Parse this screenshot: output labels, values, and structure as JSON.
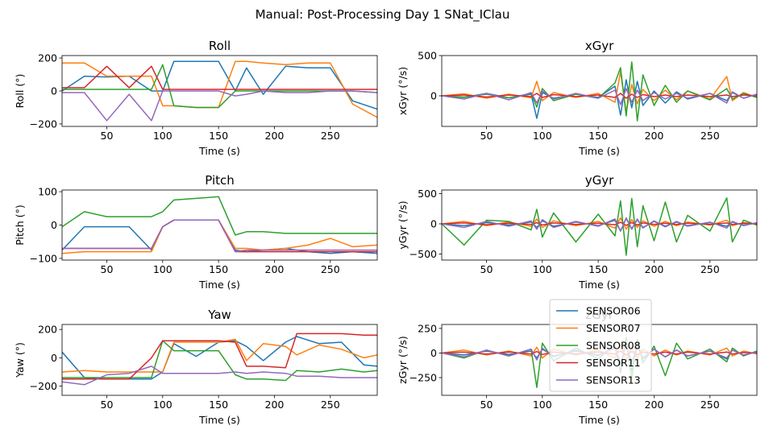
{
  "suptitle": "Manual: Post-Processing Day 1 SNat_IClau",
  "colors": {
    "SENSOR06": "#1f77b4",
    "SENSOR07": "#ff7f0e",
    "SENSOR08": "#2ca02c",
    "SENSOR11": "#d62728",
    "SENSOR13": "#9467bd"
  },
  "legend": {
    "location": "overlapping zGyr panel, top-center",
    "entries": [
      "SENSOR06",
      "SENSOR07",
      "SENSOR08",
      "SENSOR11",
      "SENSOR13"
    ]
  },
  "chart_data": [
    {
      "id": "roll",
      "type": "line",
      "title": "Roll",
      "xlabel": "Time (s)",
      "ylabel": "Roll (°)",
      "xlim": [
        10,
        292
      ],
      "ylim": [
        -215,
        215
      ],
      "xticks": [
        50,
        100,
        150,
        200,
        250
      ],
      "yticks": [
        -200,
        0,
        200
      ],
      "x": [
        10,
        30,
        50,
        70,
        90,
        100,
        110,
        130,
        150,
        165,
        175,
        190,
        210,
        230,
        250,
        270,
        292
      ],
      "series": [
        {
          "name": "SENSOR06",
          "values": [
            0,
            90,
            85,
            90,
            0,
            0,
            180,
            180,
            180,
            0,
            140,
            -20,
            150,
            140,
            140,
            -60,
            -110
          ]
        },
        {
          "name": "SENSOR07",
          "values": [
            170,
            170,
            90,
            90,
            90,
            -90,
            -90,
            -100,
            -100,
            180,
            180,
            170,
            160,
            170,
            170,
            -80,
            -160
          ]
        },
        {
          "name": "SENSOR08",
          "values": [
            10,
            10,
            10,
            10,
            10,
            160,
            -90,
            -100,
            -100,
            0,
            0,
            0,
            0,
            0,
            0,
            0,
            -10
          ]
        },
        {
          "name": "SENSOR11",
          "values": [
            20,
            20,
            150,
            20,
            150,
            10,
            10,
            10,
            10,
            10,
            10,
            10,
            10,
            10,
            10,
            10,
            10
          ]
        },
        {
          "name": "SENSOR13",
          "values": [
            -10,
            -10,
            -180,
            -20,
            -180,
            0,
            0,
            0,
            0,
            -30,
            -20,
            0,
            -10,
            -10,
            0,
            0,
            -10
          ]
        }
      ]
    },
    {
      "id": "xgyr",
      "type": "line",
      "title": "xGyr",
      "xlabel": "Time (s)",
      "ylabel": "xGyr (°/s)",
      "xlim": [
        10,
        292
      ],
      "ylim": [
        -380,
        500
      ],
      "xticks": [
        50,
        100,
        150,
        200,
        250
      ],
      "yticks": [
        0,
        500
      ],
      "x": [
        10,
        30,
        50,
        70,
        90,
        95,
        100,
        110,
        130,
        150,
        165,
        170,
        175,
        180,
        185,
        190,
        200,
        210,
        220,
        230,
        250,
        265,
        270,
        280,
        292
      ],
      "series": [
        {
          "name": "SENSOR06",
          "values": [
            0,
            -20,
            30,
            -25,
            20,
            -280,
            40,
            -30,
            20,
            -20,
            120,
            -240,
            200,
            -150,
            180,
            -120,
            60,
            -90,
            50,
            -40,
            30,
            -60,
            40,
            -30,
            20
          ]
        },
        {
          "name": "SENSOR07",
          "values": [
            0,
            25,
            -30,
            20,
            -25,
            180,
            -60,
            40,
            -20,
            30,
            -80,
            300,
            -200,
            140,
            -100,
            80,
            -60,
            70,
            -50,
            60,
            -40,
            240,
            -60,
            40,
            -20
          ]
        },
        {
          "name": "SENSOR08",
          "values": [
            0,
            -15,
            20,
            -25,
            30,
            -140,
            90,
            -60,
            20,
            -30,
            160,
            350,
            -250,
            420,
            -310,
            260,
            -120,
            130,
            -80,
            60,
            -50,
            90,
            -40,
            30,
            -20
          ]
        },
        {
          "name": "SENSOR11",
          "values": [
            0,
            10,
            -15,
            10,
            -10,
            30,
            -20,
            15,
            -10,
            10,
            -20,
            30,
            -30,
            20,
            -20,
            15,
            -10,
            10,
            -10,
            10,
            -10,
            10,
            -10,
            10,
            0
          ]
        },
        {
          "name": "SENSOR13",
          "values": [
            0,
            -40,
            30,
            -50,
            40,
            -90,
            60,
            -40,
            30,
            -30,
            70,
            -110,
            90,
            -80,
            70,
            -60,
            40,
            -40,
            30,
            -30,
            30,
            -90,
            50,
            -30,
            20
          ]
        }
      ]
    },
    {
      "id": "pitch",
      "type": "line",
      "title": "Pitch",
      "xlabel": "Time (s)",
      "ylabel": "Pitch (°)",
      "xlim": [
        10,
        292
      ],
      "ylim": [
        -105,
        105
      ],
      "xticks": [
        50,
        100,
        150,
        200,
        250
      ],
      "yticks": [
        -100,
        0,
        100
      ],
      "x": [
        10,
        30,
        50,
        70,
        90,
        100,
        110,
        130,
        150,
        165,
        175,
        190,
        210,
        230,
        250,
        270,
        292
      ],
      "series": [
        {
          "name": "SENSOR06",
          "values": [
            -75,
            -5,
            -5,
            -5,
            -75,
            -5,
            15,
            15,
            15,
            -75,
            -80,
            -75,
            -70,
            -80,
            -85,
            -80,
            -85
          ]
        },
        {
          "name": "SENSOR07",
          "values": [
            -85,
            -80,
            -80,
            -80,
            -80,
            -5,
            15,
            15,
            15,
            -70,
            -70,
            -75,
            -70,
            -60,
            -40,
            -65,
            -60
          ]
        },
        {
          "name": "SENSOR08",
          "values": [
            -5,
            40,
            25,
            25,
            25,
            40,
            75,
            80,
            85,
            -30,
            -20,
            -20,
            -25,
            -25,
            -25,
            -25,
            -25
          ]
        },
        {
          "name": "SENSOR11",
          "values": [
            -70,
            -70,
            -70,
            -70,
            -70,
            -5,
            15,
            15,
            15,
            -80,
            -80,
            -80,
            -80,
            -80,
            -80,
            -80,
            -80
          ]
        },
        {
          "name": "SENSOR13",
          "values": [
            -70,
            -70,
            -70,
            -70,
            -70,
            -5,
            15,
            15,
            15,
            -80,
            -75,
            -75,
            -75,
            -75,
            -75,
            -75,
            -75
          ]
        }
      ]
    },
    {
      "id": "ygyr",
      "type": "line",
      "title": "yGyr",
      "xlabel": "Time (s)",
      "ylabel": "yGyr (°/s)",
      "xlim": [
        10,
        292
      ],
      "ylim": [
        -600,
        560
      ],
      "xticks": [
        50,
        100,
        150,
        200,
        250
      ],
      "yticks": [
        -500,
        0,
        500
      ],
      "x": [
        10,
        30,
        50,
        70,
        90,
        95,
        100,
        110,
        130,
        150,
        165,
        170,
        175,
        180,
        185,
        190,
        200,
        210,
        220,
        230,
        250,
        265,
        270,
        280,
        292
      ],
      "series": [
        {
          "name": "SENSOR06",
          "values": [
            0,
            -30,
            20,
            -20,
            30,
            -60,
            50,
            -40,
            30,
            -30,
            60,
            -120,
            90,
            -80,
            70,
            -60,
            40,
            -40,
            30,
            -30,
            20,
            -40,
            30,
            -20,
            10
          ]
        },
        {
          "name": "SENSOR07",
          "values": [
            0,
            40,
            -30,
            30,
            -40,
            80,
            -60,
            50,
            -30,
            40,
            -70,
            100,
            -90,
            70,
            -60,
            50,
            -40,
            40,
            -30,
            30,
            -20,
            60,
            -30,
            20,
            -10
          ]
        },
        {
          "name": "SENSOR08",
          "values": [
            0,
            -350,
            60,
            40,
            -100,
            240,
            -220,
            180,
            -300,
            160,
            -200,
            380,
            -520,
            420,
            -380,
            300,
            -280,
            360,
            -300,
            140,
            -120,
            430,
            -300,
            60,
            -20
          ]
        },
        {
          "name": "SENSOR11",
          "values": [
            0,
            15,
            -15,
            10,
            -10,
            20,
            -20,
            15,
            -10,
            10,
            -15,
            25,
            -25,
            20,
            -20,
            15,
            -10,
            10,
            -10,
            10,
            -10,
            15,
            -10,
            10,
            0
          ]
        },
        {
          "name": "SENSOR13",
          "values": [
            0,
            -60,
            40,
            -40,
            50,
            -90,
            70,
            -60,
            40,
            -40,
            80,
            -120,
            100,
            -90,
            80,
            -70,
            50,
            -50,
            40,
            -40,
            30,
            -70,
            40,
            -30,
            20
          ]
        }
      ]
    },
    {
      "id": "yaw",
      "type": "line",
      "title": "Yaw",
      "xlabel": "Time (s)",
      "ylabel": "Yaw (°)",
      "xlim": [
        10,
        292
      ],
      "ylim": [
        -265,
        235
      ],
      "xticks": [
        50,
        100,
        150,
        200,
        250
      ],
      "yticks": [
        -200,
        0,
        200
      ],
      "x": [
        10,
        30,
        50,
        70,
        90,
        100,
        110,
        130,
        150,
        165,
        175,
        190,
        210,
        220,
        240,
        260,
        280,
        292
      ],
      "series": [
        {
          "name": "SENSOR06",
          "values": [
            40,
            -140,
            -150,
            -150,
            -150,
            -100,
            100,
            10,
            110,
            120,
            80,
            -20,
            110,
            150,
            100,
            110,
            -50,
            -60
          ]
        },
        {
          "name": "SENSOR07",
          "values": [
            -100,
            -90,
            -100,
            -100,
            -100,
            -100,
            110,
            110,
            110,
            130,
            -20,
            100,
            80,
            20,
            90,
            60,
            0,
            20
          ]
        },
        {
          "name": "SENSOR08",
          "values": [
            -140,
            -140,
            -140,
            -140,
            -140,
            120,
            50,
            50,
            50,
            -120,
            -150,
            -150,
            -160,
            -90,
            -100,
            -80,
            -100,
            -90
          ]
        },
        {
          "name": "SENSOR11",
          "values": [
            -150,
            -150,
            -150,
            -150,
            0,
            120,
            120,
            120,
            120,
            110,
            -60,
            -60,
            -70,
            170,
            170,
            170,
            160,
            160
          ]
        },
        {
          "name": "SENSOR13",
          "values": [
            -170,
            -190,
            -120,
            -110,
            -60,
            -110,
            -110,
            -110,
            -110,
            -100,
            -110,
            -100,
            -110,
            -130,
            -130,
            -140,
            -140,
            -140
          ]
        }
      ]
    },
    {
      "id": "zgyr",
      "type": "line",
      "title": "zGyr",
      "xlabel": "Time (s)",
      "ylabel": "zGyr (°/s)",
      "xlim": [
        10,
        292
      ],
      "ylim": [
        -430,
        290
      ],
      "xticks": [
        50,
        100,
        150,
        200,
        250
      ],
      "yticks": [
        -250,
        0,
        250
      ],
      "x": [
        10,
        30,
        50,
        70,
        90,
        95,
        100,
        110,
        130,
        150,
        165,
        170,
        175,
        180,
        185,
        190,
        200,
        210,
        220,
        230,
        250,
        265,
        270,
        280,
        292
      ],
      "series": [
        {
          "name": "SENSOR06",
          "values": [
            0,
            -20,
            20,
            -15,
            20,
            -50,
            40,
            -30,
            20,
            -20,
            50,
            -120,
            100,
            -180,
            80,
            -60,
            40,
            -40,
            30,
            -30,
            20,
            -60,
            30,
            -20,
            10
          ]
        },
        {
          "name": "SENSOR07",
          "values": [
            0,
            30,
            -20,
            20,
            -30,
            60,
            -50,
            40,
            -20,
            30,
            -50,
            90,
            -70,
            60,
            -50,
            40,
            -30,
            30,
            -20,
            20,
            -20,
            50,
            -30,
            20,
            -10
          ]
        },
        {
          "name": "SENSOR08",
          "values": [
            0,
            -50,
            30,
            -30,
            40,
            -350,
            100,
            -80,
            50,
            -60,
            90,
            -200,
            160,
            -260,
            140,
            -100,
            70,
            -230,
            100,
            -60,
            40,
            -90,
            50,
            -30,
            20
          ]
        },
        {
          "name": "SENSOR11",
          "values": [
            0,
            10,
            -10,
            10,
            -10,
            15,
            -15,
            10,
            -10,
            10,
            -10,
            20,
            -20,
            15,
            -15,
            10,
            -10,
            10,
            -10,
            10,
            -10,
            10,
            -10,
            5,
            0
          ]
        },
        {
          "name": "SENSOR13",
          "values": [
            0,
            -40,
            30,
            -30,
            40,
            -70,
            50,
            -40,
            30,
            -30,
            60,
            -100,
            80,
            -90,
            70,
            -50,
            40,
            -40,
            30,
            -30,
            20,
            -50,
            30,
            -20,
            10
          ]
        }
      ]
    }
  ]
}
